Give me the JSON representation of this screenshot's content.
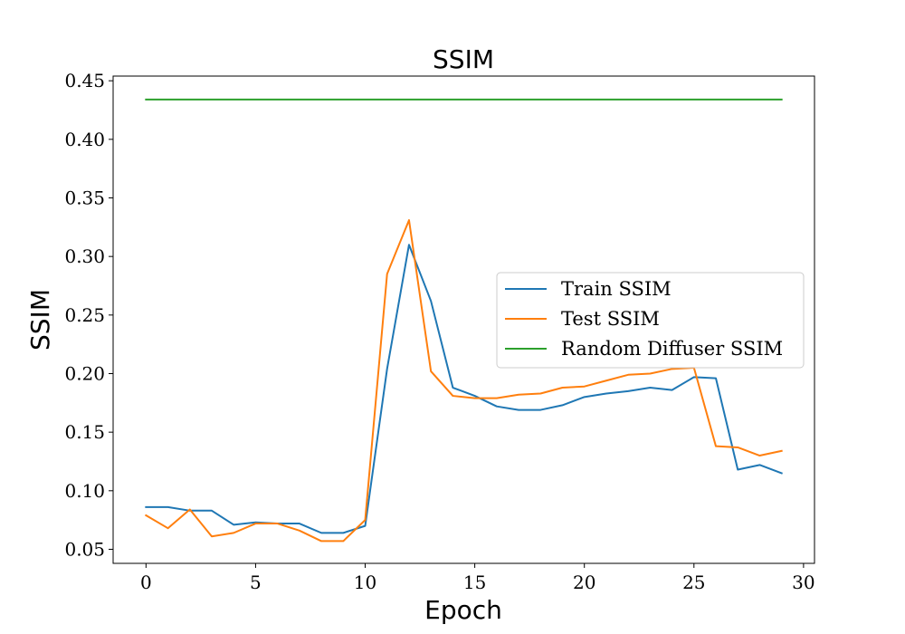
{
  "chart_data": {
    "type": "line",
    "title": "SSIM",
    "xlabel": "Epoch",
    "ylabel": "SSIM",
    "xlim": [
      -1.5,
      30.5
    ],
    "ylim": [
      0.038,
      0.454
    ],
    "xticks": [
      0,
      5,
      10,
      15,
      20,
      25,
      30
    ],
    "yticks": [
      0.05,
      0.1,
      0.15,
      0.2,
      0.25,
      0.3,
      0.35,
      0.4,
      0.45
    ],
    "xtick_labels": [
      "0",
      "5",
      "10",
      "15",
      "20",
      "25",
      "30"
    ],
    "ytick_labels": [
      "0.05",
      "0.10",
      "0.15",
      "0.20",
      "0.25",
      "0.30",
      "0.35",
      "0.40",
      "0.45"
    ],
    "grid": false,
    "legend_position": "center-right",
    "x": [
      0,
      1,
      2,
      3,
      4,
      5,
      6,
      7,
      8,
      9,
      10,
      11,
      12,
      13,
      14,
      15,
      16,
      17,
      18,
      19,
      20,
      21,
      22,
      23,
      24,
      25,
      26,
      27,
      28,
      29
    ],
    "series": [
      {
        "name": "Train SSIM",
        "color": "#1f77b4",
        "values": [
          0.086,
          0.086,
          0.083,
          0.083,
          0.071,
          0.073,
          0.072,
          0.072,
          0.064,
          0.064,
          0.07,
          0.204,
          0.31,
          0.262,
          0.188,
          0.181,
          0.172,
          0.169,
          0.169,
          0.173,
          0.18,
          0.183,
          0.185,
          0.188,
          0.186,
          0.197,
          0.196,
          0.118,
          0.122,
          0.115
        ]
      },
      {
        "name": "Test SSIM",
        "color": "#ff7f0e",
        "values": [
          0.079,
          0.068,
          0.084,
          0.061,
          0.064,
          0.072,
          0.072,
          0.066,
          0.057,
          0.057,
          0.075,
          0.285,
          0.331,
          0.202,
          0.181,
          0.179,
          0.179,
          0.182,
          0.183,
          0.188,
          0.189,
          0.194,
          0.199,
          0.2,
          0.204,
          0.205,
          0.138,
          0.137,
          0.13,
          0.134
        ]
      },
      {
        "name": "Random Diffuser SSIM",
        "color": "#2ca02c",
        "values": [
          0.434,
          0.434,
          0.434,
          0.434,
          0.434,
          0.434,
          0.434,
          0.434,
          0.434,
          0.434,
          0.434,
          0.434,
          0.434,
          0.434,
          0.434,
          0.434,
          0.434,
          0.434,
          0.434,
          0.434,
          0.434,
          0.434,
          0.434,
          0.434,
          0.434,
          0.434,
          0.434,
          0.434,
          0.434,
          0.434
        ]
      }
    ]
  }
}
